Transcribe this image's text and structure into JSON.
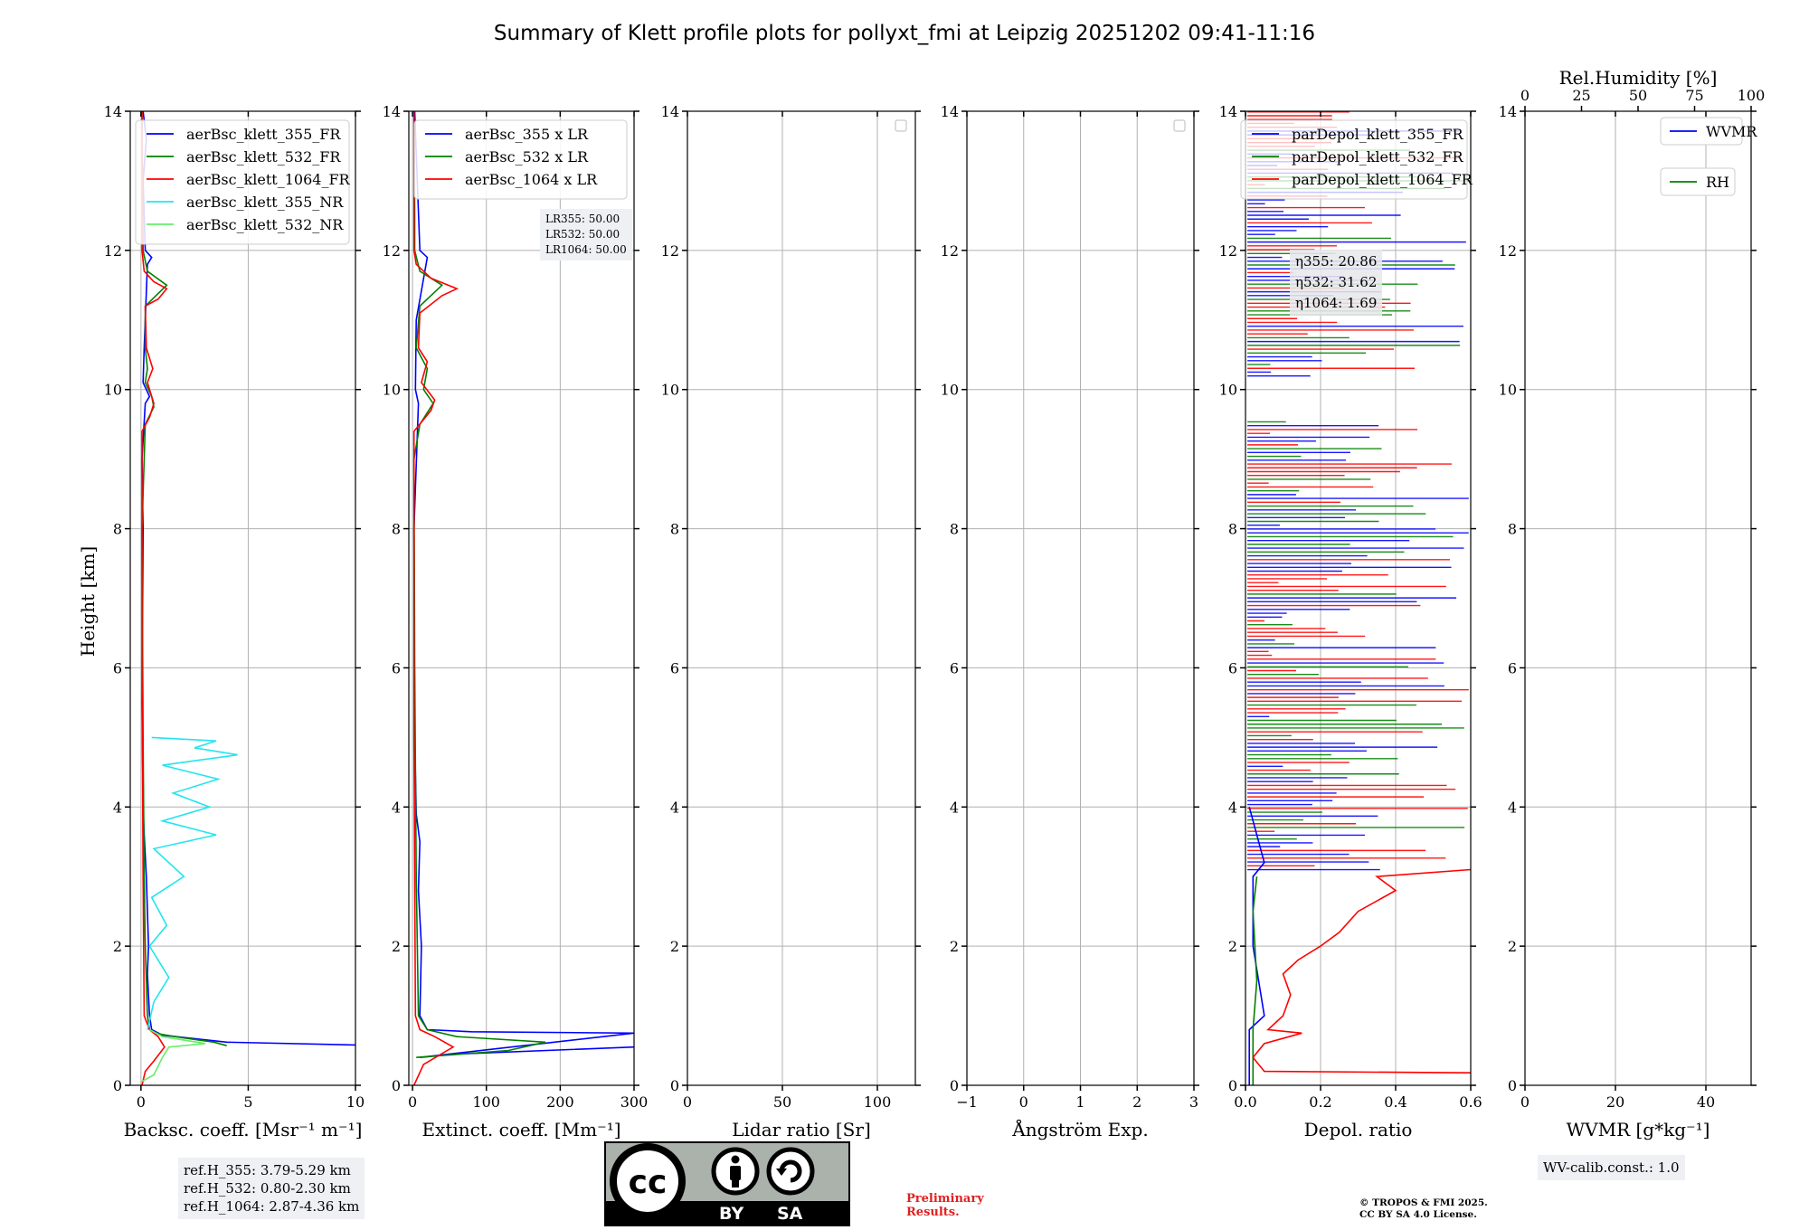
{
  "figure_title": "Summary of Klett profile plots for pollyxt_fmi at Leipzig 20251202 09:41-11:16",
  "y_axis_label": "Height [km]",
  "chart_data": [
    {
      "type": "line",
      "panel": "backscatter",
      "xlabel": "Backsc. coeff. [Msr⁻¹ m⁻¹]",
      "xlim": [
        -0.5,
        10
      ],
      "xticks": [
        0,
        5,
        10
      ],
      "ylim": [
        0,
        14
      ],
      "yticks": [
        0,
        2,
        4,
        6,
        8,
        10,
        12,
        14
      ],
      "grid": true,
      "legend": "top-left",
      "series": [
        {
          "name": "aerBsc_klett_355_FR",
          "color": "#0000ff",
          "points": [
            [
              10,
              0.58
            ],
            [
              4,
              0.62
            ],
            [
              1,
              0.72
            ],
            [
              0.5,
              0.8
            ],
            [
              0.4,
              1.0
            ],
            [
              0.3,
              1.6
            ],
            [
              0.35,
              2.0
            ],
            [
              0.3,
              2.5
            ],
            [
              0.25,
              3.0
            ],
            [
              0.15,
              3.6
            ],
            [
              0.1,
              4.0
            ],
            [
              0.05,
              5.5
            ],
            [
              0.1,
              8.0
            ],
            [
              0.05,
              9.0
            ],
            [
              0.2,
              9.8
            ],
            [
              0.4,
              9.9
            ],
            [
              0.1,
              10.1
            ],
            [
              0.15,
              10.6
            ],
            [
              0.3,
              11.8
            ],
            [
              0.5,
              11.9
            ],
            [
              0.2,
              12.0
            ],
            [
              0.1,
              13.0
            ],
            [
              0.25,
              13.6
            ],
            [
              0.1,
              14.0
            ]
          ]
        },
        {
          "name": "aerBsc_klett_532_FR",
          "color": "#008000",
          "points": [
            [
              4,
              0.57
            ],
            [
              3.4,
              0.62
            ],
            [
              2.0,
              0.68
            ],
            [
              0.8,
              0.74
            ],
            [
              0.4,
              0.8
            ],
            [
              0.3,
              1.0
            ],
            [
              0.2,
              2.0
            ],
            [
              0.15,
              3.0
            ],
            [
              0.1,
              5.0
            ],
            [
              0.05,
              8.0
            ],
            [
              0.2,
              9.5
            ],
            [
              0.6,
              9.75
            ],
            [
              0.5,
              9.9
            ],
            [
              0.2,
              10.1
            ],
            [
              0.3,
              10.3
            ],
            [
              0.2,
              10.6
            ],
            [
              0.2,
              11.2
            ],
            [
              1.2,
              11.5
            ],
            [
              0.3,
              11.7
            ],
            [
              0.1,
              12.0
            ],
            [
              0.05,
              14.0
            ]
          ]
        },
        {
          "name": "aerBsc_klett_1064_FR",
          "color": "#ff0000",
          "points": [
            [
              0.05,
              0.0
            ],
            [
              0.2,
              0.2
            ],
            [
              0.6,
              0.35
            ],
            [
              1.1,
              0.55
            ],
            [
              0.8,
              0.7
            ],
            [
              0.4,
              0.8
            ],
            [
              0.15,
              1.0
            ],
            [
              0.1,
              3.0
            ],
            [
              0.05,
              6.0
            ],
            [
              0.05,
              9.4
            ],
            [
              0.4,
              9.6
            ],
            [
              0.6,
              9.8
            ],
            [
              0.3,
              10.1
            ],
            [
              0.55,
              10.3
            ],
            [
              0.25,
              10.6
            ],
            [
              0.2,
              11.2
            ],
            [
              0.8,
              11.3
            ],
            [
              1.2,
              11.45
            ],
            [
              0.6,
              11.55
            ],
            [
              0.15,
              11.7
            ],
            [
              0.05,
              12.0
            ],
            [
              0.05,
              14.0
            ]
          ]
        },
        {
          "name": "aerBsc_klett_355_NR",
          "color": "#22e5ee",
          "points": [
            [
              0.3,
              0.8
            ],
            [
              0.6,
              1.2
            ],
            [
              1.3,
              1.55
            ],
            [
              0.4,
              2.0
            ],
            [
              1.2,
              2.3
            ],
            [
              0.5,
              2.7
            ],
            [
              2.0,
              3.0
            ],
            [
              0.6,
              3.4
            ],
            [
              3.5,
              3.6
            ],
            [
              1.0,
              3.8
            ],
            [
              3.2,
              4.0
            ],
            [
              1.5,
              4.2
            ],
            [
              3.6,
              4.4
            ],
            [
              1.0,
              4.6
            ],
            [
              4.5,
              4.75
            ],
            [
              2.5,
              4.85
            ],
            [
              3.5,
              4.95
            ],
            [
              0.5,
              5.0
            ]
          ]
        },
        {
          "name": "aerBsc_klett_532_NR",
          "color": "#66ee66",
          "points": [
            [
              0.0,
              0.05
            ],
            [
              0.6,
              0.15
            ],
            [
              1.0,
              0.4
            ],
            [
              1.3,
              0.55
            ],
            [
              3.0,
              0.6
            ],
            [
              1.0,
              0.7
            ],
            [
              0.4,
              0.8
            ]
          ]
        }
      ],
      "info_box": [
        "ref.H_355: 3.79-5.29 km",
        "ref.H_532: 0.80-2.30 km",
        "ref.H_1064: 2.87-4.36 km"
      ]
    },
    {
      "type": "line",
      "panel": "extinction",
      "xlabel": "Extinct. coeff. [Mm⁻¹]",
      "xlim": [
        -5,
        300
      ],
      "xticks": [
        0,
        100,
        200,
        300
      ],
      "ylim": [
        0,
        14
      ],
      "grid": true,
      "legend": "top-left",
      "series": [
        {
          "name": "aerBsc_355 x LR",
          "color": "#0000ff",
          "points": [
            [
              300,
              0.55
            ],
            [
              60,
              0.45
            ],
            [
              10,
              0.4
            ],
            [
              300,
              0.75
            ],
            [
              80,
              0.77
            ],
            [
              20,
              0.8
            ],
            [
              10,
              1.0
            ],
            [
              12,
              2.0
            ],
            [
              8,
              2.8
            ],
            [
              10,
              3.5
            ],
            [
              5,
              3.9
            ],
            [
              3,
              5.0
            ],
            [
              2,
              8.0
            ],
            [
              8,
              9.8
            ],
            [
              4,
              10.0
            ],
            [
              5,
              11.0
            ],
            [
              20,
              11.9
            ],
            [
              10,
              12.0
            ],
            [
              3,
              14.0
            ]
          ]
        },
        {
          "name": "aerBsc_532 x LR",
          "color": "#008000",
          "points": [
            [
              5,
              0.4
            ],
            [
              130,
              0.5
            ],
            [
              180,
              0.62
            ],
            [
              60,
              0.7
            ],
            [
              20,
              0.8
            ],
            [
              8,
              1.0
            ],
            [
              5,
              3.0
            ],
            [
              3,
              6.0
            ],
            [
              2,
              9.0
            ],
            [
              10,
              9.5
            ],
            [
              28,
              9.8
            ],
            [
              15,
              10.0
            ],
            [
              20,
              10.3
            ],
            [
              5,
              10.6
            ],
            [
              10,
              11.2
            ],
            [
              40,
              11.5
            ],
            [
              10,
              11.7
            ],
            [
              3,
              12.0
            ],
            [
              3,
              12.5
            ],
            [
              2,
              14.0
            ]
          ]
        },
        {
          "name": "aerBsc_1064 x LR",
          "color": "#ff0000",
          "points": [
            [
              2,
              0.0
            ],
            [
              15,
              0.3
            ],
            [
              55,
              0.55
            ],
            [
              30,
              0.7
            ],
            [
              10,
              0.8
            ],
            [
              4,
              1.0
            ],
            [
              2,
              5.0
            ],
            [
              2,
              9.4
            ],
            [
              25,
              9.7
            ],
            [
              30,
              9.85
            ],
            [
              12,
              10.1
            ],
            [
              20,
              10.4
            ],
            [
              8,
              10.6
            ],
            [
              10,
              11.1
            ],
            [
              40,
              11.35
            ],
            [
              60,
              11.45
            ],
            [
              25,
              11.6
            ],
            [
              5,
              11.8
            ],
            [
              2,
              12.0
            ],
            [
              2,
              14.0
            ]
          ]
        }
      ],
      "info_box": [
        "LR355: 50.00",
        "LR532: 50.00",
        "LR1064: 50.00"
      ]
    },
    {
      "type": "line",
      "panel": "lidar_ratio",
      "xlabel": "Lidar ratio [Sr]",
      "xlim": [
        0,
        120
      ],
      "xticks": [
        0,
        50,
        100
      ],
      "ylim": [
        0,
        14
      ],
      "grid": true,
      "series": []
    },
    {
      "type": "line",
      "panel": "angstrom",
      "xlabel": "Ångström Exp.",
      "xlim": [
        -1,
        3
      ],
      "xticks": [
        -1,
        0,
        1,
        2,
        3
      ],
      "ylim": [
        0,
        14
      ],
      "grid": true,
      "series": []
    },
    {
      "type": "line",
      "panel": "depolarization",
      "xlabel": "Depol. ratio",
      "xlim": [
        0,
        0.6
      ],
      "xticks": [
        0.0,
        0.2,
        0.4,
        0.6
      ],
      "ylim": [
        0,
        14
      ],
      "grid": true,
      "legend": "top-left",
      "series": [
        {
          "name": "parDepol_klett_355_FR",
          "color": "#0000ff",
          "points": [
            [
              0.01,
              0.0
            ],
            [
              0.01,
              0.8
            ],
            [
              0.05,
              1.0
            ],
            [
              0.02,
              2.0
            ],
            [
              0.02,
              3.0
            ],
            [
              0.05,
              3.2
            ],
            [
              0.01,
              4.0
            ]
          ]
        },
        {
          "name": "parDepol_klett_532_FR",
          "color": "#008000",
          "points": [
            [
              0.02,
              0.0
            ],
            [
              0.02,
              0.8
            ],
            [
              0.03,
              1.5
            ],
            [
              0.02,
              2.5
            ],
            [
              0.03,
              3.0
            ]
          ]
        },
        {
          "name": "parDepol_klett_1064_FR",
          "color": "#ff0000",
          "points": [
            [
              0.6,
              0.18
            ],
            [
              0.05,
              0.2
            ],
            [
              0.02,
              0.4
            ],
            [
              0.05,
              0.6
            ],
            [
              0.15,
              0.75
            ],
            [
              0.06,
              0.8
            ],
            [
              0.1,
              1.0
            ],
            [
              0.12,
              1.3
            ],
            [
              0.1,
              1.6
            ],
            [
              0.14,
              1.8
            ],
            [
              0.2,
              2.0
            ],
            [
              0.25,
              2.2
            ],
            [
              0.3,
              2.5
            ],
            [
              0.4,
              2.8
            ],
            [
              0.35,
              3.0
            ],
            [
              0.6,
              3.1
            ]
          ]
        }
      ],
      "info_box": [
        "η355: 20.86",
        "η532: 31.62",
        "η1064: 1.69"
      ]
    },
    {
      "type": "line",
      "panel": "water_vapor",
      "xlabel": "WVMR [g*kg⁻¹]",
      "xlim": [
        0,
        50
      ],
      "xticks": [
        0,
        20,
        40
      ],
      "x2label": "Rel.Humidity [%]",
      "x2lim": [
        0,
        100
      ],
      "x2ticks": [
        0,
        25,
        50,
        75,
        100
      ],
      "ylim": [
        0,
        14
      ],
      "grid": true,
      "series": [
        {
          "name": "WVMR",
          "color": "#0000ff",
          "points": []
        },
        {
          "name": "RH",
          "color": "#008000",
          "points": []
        }
      ],
      "info_box": [
        "WV-calib.const.: 1.0"
      ]
    }
  ],
  "preliminary_text": [
    "Preliminary",
    "Results."
  ],
  "copyright_text": [
    "© TROPOS & FMI 2025.",
    "CC BY SA 4.0 License."
  ],
  "cc_badge": {
    "cc": "cc",
    "by": "BY",
    "sa": "SA"
  }
}
